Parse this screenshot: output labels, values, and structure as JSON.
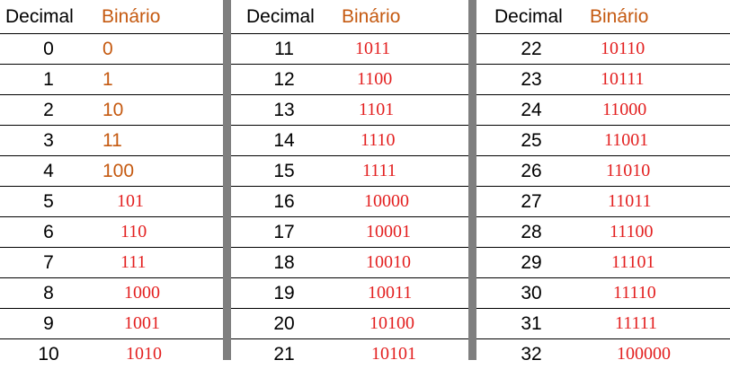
{
  "headers": {
    "decimal": "Decimal",
    "binary": "Binário"
  },
  "columns": [
    {
      "rows": [
        {
          "d": "0",
          "b": "0"
        },
        {
          "d": "1",
          "b": "1"
        },
        {
          "d": "2",
          "b": "10"
        },
        {
          "d": "3",
          "b": "11"
        },
        {
          "d": "4",
          "b": "100"
        },
        {
          "d": "5",
          "b": "101"
        },
        {
          "d": "6",
          "b": "110"
        },
        {
          "d": "7",
          "b": "111"
        },
        {
          "d": "8",
          "b": "1000"
        },
        {
          "d": "9",
          "b": "1001"
        },
        {
          "d": "10",
          "b": "1010"
        }
      ]
    },
    {
      "rows": [
        {
          "d": "11",
          "b": "1011"
        },
        {
          "d": "12",
          "b": "1100"
        },
        {
          "d": "13",
          "b": "1101"
        },
        {
          "d": "14",
          "b": "1110"
        },
        {
          "d": "15",
          "b": "1111"
        },
        {
          "d": "16",
          "b": "10000"
        },
        {
          "d": "17",
          "b": "10001"
        },
        {
          "d": "18",
          "b": "10010"
        },
        {
          "d": "19",
          "b": "10011"
        },
        {
          "d": "20",
          "b": "10100"
        },
        {
          "d": "21",
          "b": "10101"
        }
      ]
    },
    {
      "rows": [
        {
          "d": "22",
          "b": "10110"
        },
        {
          "d": "23",
          "b": "10111"
        },
        {
          "d": "24",
          "b": "11000"
        },
        {
          "d": "25",
          "b": "11001"
        },
        {
          "d": "26",
          "b": "11010"
        },
        {
          "d": "27",
          "b": "11011"
        },
        {
          "d": "28",
          "b": "11100"
        },
        {
          "d": "29",
          "b": "11101"
        },
        {
          "d": "30",
          "b": "11110"
        },
        {
          "d": "31",
          "b": "11111"
        },
        {
          "d": "32",
          "b": "100000"
        }
      ]
    }
  ]
}
